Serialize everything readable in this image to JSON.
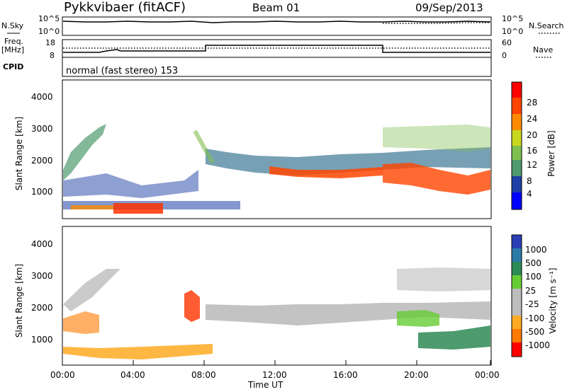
{
  "header": {
    "title_left": "Pykkvibaer (fitACF)",
    "title_center": "Beam 01",
    "title_right": "09/Sep/2013"
  },
  "noise_panel": {
    "label_left": "N.Sky",
    "label_right": "N.Search",
    "ticks_left": [
      "10^5",
      "10^0"
    ],
    "ticks_right": [
      "10^5",
      "10^0"
    ]
  },
  "freq_panel": {
    "label_left_1": "Freq.",
    "label_left_2": "[MHz]",
    "ticks_left": [
      "18",
      "8"
    ],
    "label_right": "Nave",
    "ticks_right": [
      "60",
      "0"
    ]
  },
  "cpid_panel": {
    "label": "CPID",
    "text": "normal (fast stereo) 153"
  },
  "chart_data": [
    {
      "type": "heatmap",
      "parameter": "Power",
      "ylabel": "Slant Range [km]",
      "y_ticks": [
        "1000",
        "2000",
        "3000",
        "4000"
      ],
      "colorbar_label": "Power [dB]",
      "colorbar_ticks": [
        "4",
        "8",
        "12",
        "16",
        "20",
        "24",
        "28"
      ],
      "colorbar_colors": [
        "#0000ff",
        "#1e3fa6",
        "#2e6d8c",
        "#4f9a6e",
        "#7fbf4f",
        "#c8d81f",
        "#f5b800",
        "#ff8a00",
        "#ff4500",
        "#ff0000"
      ],
      "ylim_km": [
        180,
        4500
      ],
      "x_range_ut": [
        "00:00",
        "24:00"
      ]
    },
    {
      "type": "heatmap",
      "parameter": "Velocity",
      "ylabel": "Slant Range [km]",
      "y_ticks": [
        "1000",
        "2000",
        "3000",
        "4000"
      ],
      "colorbar_label": "Velocity [m s⁻¹]",
      "colorbar_ticks": [
        "1000",
        "500",
        "100",
        "25",
        "-25",
        "-100",
        "-500",
        "-1000"
      ],
      "colorbar_colors": [
        "#2a3fb5",
        "#2c7aa8",
        "#2e8a55",
        "#66cc33",
        "#bdbdbd",
        "#bdbdbd",
        "#ffaa22",
        "#ff7a00",
        "#ff3300",
        "#ff0000"
      ],
      "ylim_km": [
        180,
        4500
      ],
      "x_range_ut": [
        "00:00",
        "24:00"
      ]
    }
  ],
  "x_axis": {
    "ticks": [
      "00:00",
      "04:00",
      "08:00",
      "12:00",
      "16:00",
      "20:00",
      "00:00"
    ],
    "label": "Time UT"
  }
}
